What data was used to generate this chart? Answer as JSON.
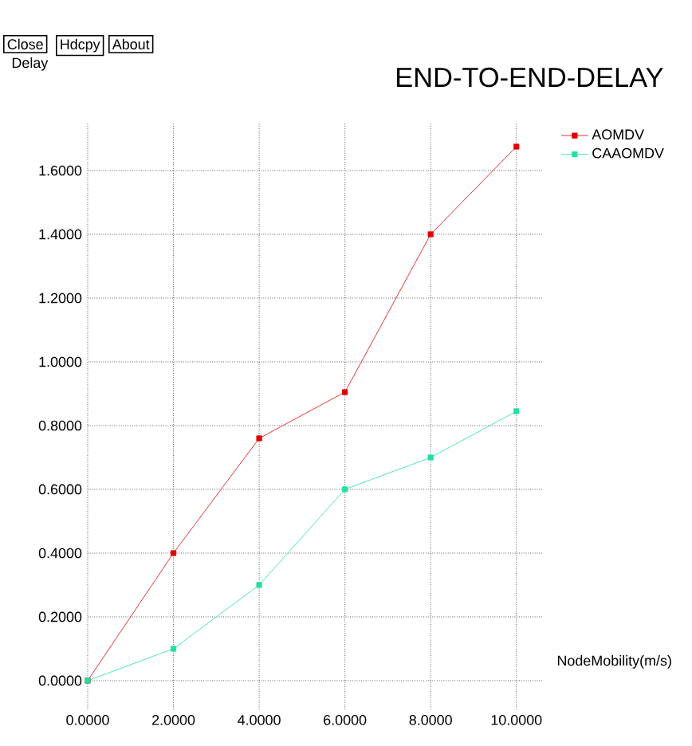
{
  "chart_data": {
    "type": "line",
    "title": "END-TO-END-DELAY",
    "xlabel": "NodeMobility(m/s)",
    "ylabel": "Delay",
    "annotations": [
      "Close",
      "Hdcpy",
      "About"
    ],
    "x": [
      0,
      2,
      4,
      6,
      8,
      10
    ],
    "series": [
      {
        "name": "AOMDV",
        "color": "#e00000",
        "values": [
          0.0,
          0.4,
          0.76,
          0.905,
          1.4,
          1.675
        ]
      },
      {
        "name": "CAAOMDV",
        "color": "#20e0a0",
        "values": [
          0.0,
          0.1,
          0.3,
          0.6,
          0.7,
          0.845
        ]
      }
    ],
    "xlim": [
      0,
      10.6
    ],
    "ylim": [
      -0.09,
      1.75
    ],
    "xticks": [
      {
        "value": 0,
        "label": "0.0000"
      },
      {
        "value": 2,
        "label": "2.0000"
      },
      {
        "value": 4,
        "label": "4.0000"
      },
      {
        "value": 6,
        "label": "6.0000"
      },
      {
        "value": 8,
        "label": "8.0000"
      },
      {
        "value": 10,
        "label": "10.0000"
      }
    ],
    "yticks": [
      {
        "value": 0,
        "label": "0.0000"
      },
      {
        "value": 0.2,
        "label": "0.2000"
      },
      {
        "value": 0.4,
        "label": "0.4000"
      },
      {
        "value": 0.6,
        "label": "0.6000"
      },
      {
        "value": 0.8,
        "label": "0.8000"
      },
      {
        "value": 1.0,
        "label": "1.0000"
      },
      {
        "value": 1.2,
        "label": "1.2000"
      },
      {
        "value": 1.4,
        "label": "1.4000"
      },
      {
        "value": 1.6,
        "label": "1.6000"
      }
    ],
    "grid": true,
    "legend": "top right",
    "marker": "square",
    "line_style": "solid"
  }
}
